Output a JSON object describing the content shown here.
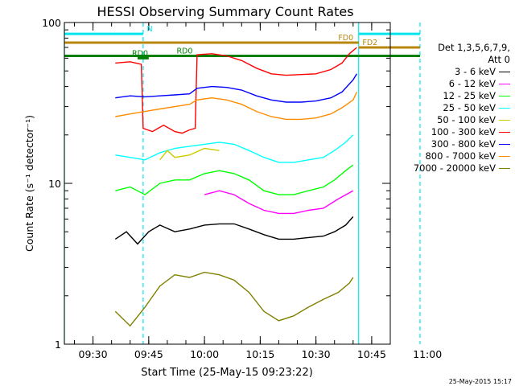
{
  "chart_data": {
    "type": "line",
    "title": "HESSI Observing Summary Count Rates",
    "xlabel": "Start Time (25-May-15 09:23:22)",
    "ylabel": "Count Rate (s⁻¹ detector⁻¹)",
    "yscale": "log",
    "ylim": [
      1,
      100
    ],
    "xlim_minutes": [
      22.3,
      110
    ],
    "yticks": [
      {
        "v": 1,
        "label": "1"
      },
      {
        "v": 10,
        "label": "10"
      },
      {
        "v": 100,
        "label": "100"
      }
    ],
    "xticks": [
      {
        "m": 30,
        "label": "09:30"
      },
      {
        "m": 45,
        "label": "09:45"
      },
      {
        "m": 60,
        "label": "10:00"
      },
      {
        "m": 75,
        "label": "10:15"
      },
      {
        "m": 90,
        "label": "10:30"
      },
      {
        "m": 105,
        "label": "10:45"
      },
      {
        "m": 120,
        "label": "11:00"
      }
    ],
    "legend_header": [
      "Det 1,3,5,6,7,9,",
      "Att 0"
    ],
    "series": [
      {
        "name": "3 - 6 keV",
        "color": "#000000",
        "values": [
          [
            36,
            4.5
          ],
          [
            39,
            5.0
          ],
          [
            42,
            4.2
          ],
          [
            45,
            5.0
          ],
          [
            48,
            5.5
          ],
          [
            52,
            5.0
          ],
          [
            56,
            5.2
          ],
          [
            60,
            5.5
          ],
          [
            64,
            5.6
          ],
          [
            68,
            5.6
          ],
          [
            72,
            5.2
          ],
          [
            76,
            4.8
          ],
          [
            80,
            4.5
          ],
          [
            84,
            4.5
          ],
          [
            88,
            4.6
          ],
          [
            92,
            4.7
          ],
          [
            95,
            5.0
          ],
          [
            98,
            5.5
          ],
          [
            100,
            6.2
          ]
        ]
      },
      {
        "name": "6 - 12 keV",
        "color": "#ff00ff",
        "values": [
          [
            60,
            8.5
          ],
          [
            64,
            9.0
          ],
          [
            68,
            8.5
          ],
          [
            72,
            7.5
          ],
          [
            76,
            6.8
          ],
          [
            80,
            6.5
          ],
          [
            84,
            6.5
          ],
          [
            88,
            6.8
          ],
          [
            92,
            7.0
          ],
          [
            96,
            8.0
          ],
          [
            100,
            9.0
          ]
        ]
      },
      {
        "name": "12 - 25 keV",
        "color": "#00ff00",
        "values": [
          [
            36,
            9.0
          ],
          [
            40,
            9.5
          ],
          [
            44,
            8.5
          ],
          [
            48,
            10.0
          ],
          [
            52,
            10.5
          ],
          [
            56,
            10.5
          ],
          [
            60,
            11.5
          ],
          [
            64,
            12.0
          ],
          [
            68,
            11.5
          ],
          [
            72,
            10.5
          ],
          [
            76,
            9.0
          ],
          [
            80,
            8.5
          ],
          [
            84,
            8.5
          ],
          [
            88,
            9.0
          ],
          [
            92,
            9.5
          ],
          [
            95,
            10.5
          ],
          [
            98,
            12.0
          ],
          [
            100,
            13.0
          ]
        ]
      },
      {
        "name": "25 - 50 keV",
        "color": "#00ffff",
        "values": [
          [
            36,
            15.0
          ],
          [
            40,
            14.5
          ],
          [
            44,
            14.0
          ],
          [
            48,
            15.5
          ],
          [
            52,
            16.5
          ],
          [
            56,
            17.0
          ],
          [
            60,
            17.5
          ],
          [
            64,
            18.0
          ],
          [
            68,
            17.5
          ],
          [
            72,
            16.0
          ],
          [
            76,
            14.5
          ],
          [
            80,
            13.5
          ],
          [
            84,
            13.5
          ],
          [
            88,
            14.0
          ],
          [
            92,
            14.5
          ],
          [
            95,
            16.0
          ],
          [
            98,
            18.0
          ],
          [
            100,
            20.0
          ]
        ]
      },
      {
        "name": "50 - 100 keV",
        "color": "#cccc00",
        "values": [
          [
            48,
            14.0
          ],
          [
            50,
            16.0
          ],
          [
            52,
            14.5
          ],
          [
            56,
            15.0
          ],
          [
            60,
            16.5
          ],
          [
            64,
            16.0
          ]
        ]
      },
      {
        "name": "100 - 300 keV",
        "color": "#ff0000",
        "values": [
          [
            36,
            56.0
          ],
          [
            40,
            57.0
          ],
          [
            43,
            55.0
          ],
          [
            43.5,
            22.0
          ],
          [
            46,
            21.0
          ],
          [
            49,
            23.0
          ],
          [
            52,
            21.0
          ],
          [
            54,
            20.5
          ],
          [
            56,
            21.5
          ],
          [
            57.5,
            22.0
          ],
          [
            58,
            63.0
          ],
          [
            62,
            64.0
          ],
          [
            66,
            62.0
          ],
          [
            70,
            58.0
          ],
          [
            74,
            52.0
          ],
          [
            78,
            48.0
          ],
          [
            82,
            47.0
          ],
          [
            86,
            47.5
          ],
          [
            90,
            48.0
          ],
          [
            94,
            51.0
          ],
          [
            97,
            56.0
          ],
          [
            99,
            64.0
          ],
          [
            101,
            70.0
          ]
        ]
      },
      {
        "name": "300 - 800 keV",
        "color": "#0000ff",
        "values": [
          [
            36,
            34.0
          ],
          [
            40,
            35.0
          ],
          [
            44,
            34.5
          ],
          [
            48,
            35.0
          ],
          [
            52,
            35.5
          ],
          [
            56,
            36.0
          ],
          [
            58,
            39.0
          ],
          [
            62,
            40.0
          ],
          [
            66,
            39.5
          ],
          [
            70,
            38.0
          ],
          [
            74,
            35.0
          ],
          [
            78,
            33.0
          ],
          [
            82,
            32.0
          ],
          [
            86,
            32.0
          ],
          [
            90,
            32.5
          ],
          [
            94,
            34.0
          ],
          [
            97,
            37.0
          ],
          [
            100,
            44.0
          ],
          [
            101,
            48.0
          ]
        ]
      },
      {
        "name": "800 - 7000 keV",
        "color": "#ff8c00",
        "values": [
          [
            36,
            26.0
          ],
          [
            40,
            27.0
          ],
          [
            44,
            28.0
          ],
          [
            48,
            29.0
          ],
          [
            52,
            30.0
          ],
          [
            56,
            31.0
          ],
          [
            58,
            33.0
          ],
          [
            62,
            34.0
          ],
          [
            66,
            33.0
          ],
          [
            70,
            31.0
          ],
          [
            74,
            28.0
          ],
          [
            78,
            26.0
          ],
          [
            82,
            25.0
          ],
          [
            86,
            25.0
          ],
          [
            90,
            25.5
          ],
          [
            94,
            27.0
          ],
          [
            97,
            29.5
          ],
          [
            100,
            33.0
          ],
          [
            101,
            37.0
          ]
        ]
      },
      {
        "name": "7000 - 20000 keV",
        "color": "#808000",
        "values": [
          [
            36,
            1.6
          ],
          [
            40,
            1.3
          ],
          [
            44,
            1.7
          ],
          [
            48,
            2.3
          ],
          [
            52,
            2.7
          ],
          [
            56,
            2.6
          ],
          [
            60,
            2.8
          ],
          [
            64,
            2.7
          ],
          [
            68,
            2.5
          ],
          [
            72,
            2.1
          ],
          [
            76,
            1.6
          ],
          [
            80,
            1.4
          ],
          [
            84,
            1.5
          ],
          [
            88,
            1.7
          ],
          [
            92,
            1.9
          ],
          [
            96,
            2.1
          ],
          [
            99,
            2.4
          ],
          [
            100,
            2.6
          ]
        ]
      }
    ],
    "bars": [
      {
        "label": "N",
        "color": "#00e5ee",
        "y": 85,
        "x0": 22.3,
        "x1": 43.5,
        "label_m": 44.5
      },
      {
        "label": "",
        "color": "#00e5ee",
        "y": 85,
        "x0": 101.5,
        "x1": 118,
        "label_m": null
      },
      {
        "label": "FD0",
        "color": "#b8860b",
        "y": 75,
        "x0": 22.3,
        "x1": 101.5,
        "label_m": 96.0
      },
      {
        "label": "FD2",
        "color": "#b8860b",
        "y": 70,
        "x0": 101.5,
        "x1": 118,
        "label_m": 102.5
      },
      {
        "label": "RD0",
        "color": "#008000",
        "y": 62,
        "x0": 22.3,
        "x1": 101.5,
        "label_m": 52.5
      },
      {
        "label": "",
        "color": "#008000",
        "y": 62,
        "x0": 101.5,
        "x1": 118,
        "label_m": null
      },
      {
        "label": "RD0",
        "color": "#008000",
        "y": 60,
        "x0": 42,
        "x1": 45,
        "label_m": 40.5
      }
    ],
    "vlines": [
      {
        "m": 22.3,
        "color": "#00e5ee",
        "dash": false
      },
      {
        "m": 43.5,
        "color": "#00e5ee",
        "dash": true
      },
      {
        "m": 101.5,
        "color": "#00e5ee",
        "dash": false
      },
      {
        "m": 118,
        "color": "#00e5ee",
        "dash": true
      }
    ]
  },
  "footer_date": "25-May-2015 15:17"
}
